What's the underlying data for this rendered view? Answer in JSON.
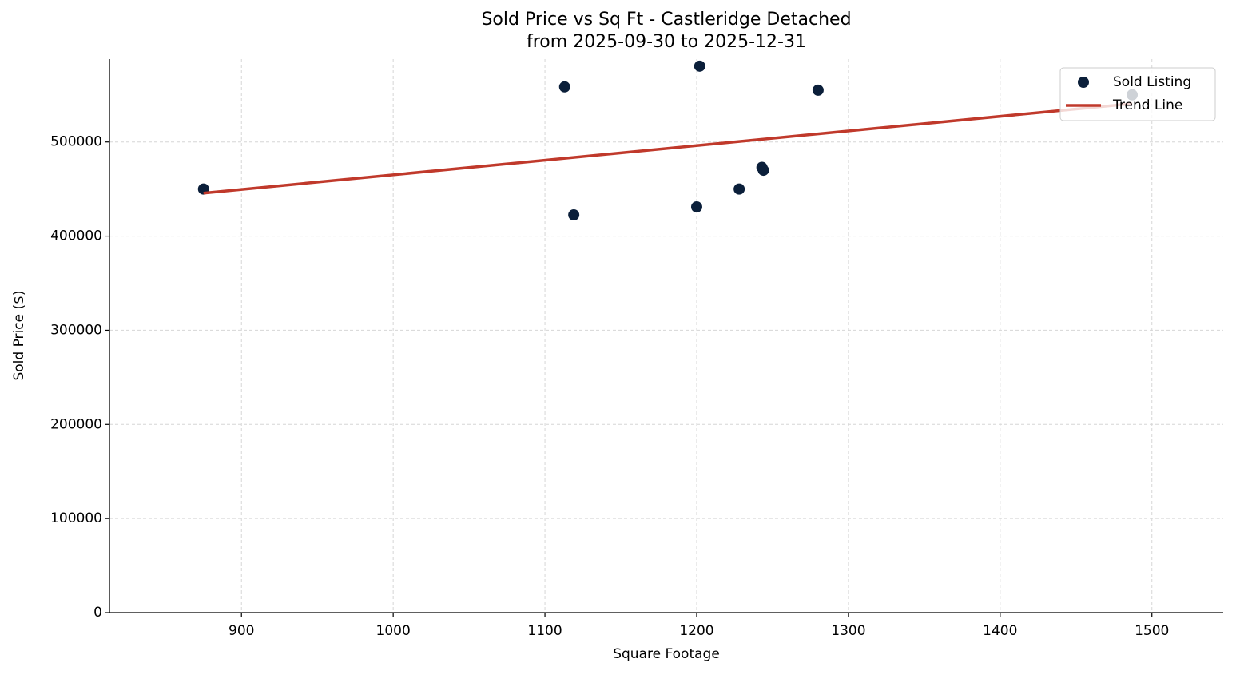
{
  "chart_data": {
    "type": "scatter",
    "title": "Sold Price vs Sq Ft - Castleridge Detached",
    "subtitle": "from 2025-09-30 to 2025-12-31",
    "x_label": "Square Footage",
    "y_label": "Sold Price ($)",
    "xlim": [
      813,
      1547
    ],
    "ylim": [
      0,
      588000
    ],
    "xticks": [
      900,
      1000,
      1100,
      1200,
      1300,
      1400,
      1500
    ],
    "yticks": [
      0,
      100000,
      200000,
      300000,
      400000,
      500000
    ],
    "grid": true,
    "legend": "upper right",
    "series": [
      {
        "name": "Sold Listing",
        "type": "scatter",
        "color": "#0b1f3a",
        "x": [
          875,
          1113,
          1119,
          1202,
          1200,
          1228,
          1243,
          1244,
          1280,
          1487
        ],
        "values": [
          450000,
          558500,
          422500,
          580500,
          431000,
          450000,
          473000,
          470000,
          555000,
          550000
        ]
      },
      {
        "name": "Trend Line",
        "type": "line",
        "color": "#c0392b",
        "x": [
          875,
          1487
        ],
        "values": [
          445700,
          540700
        ]
      }
    ]
  }
}
